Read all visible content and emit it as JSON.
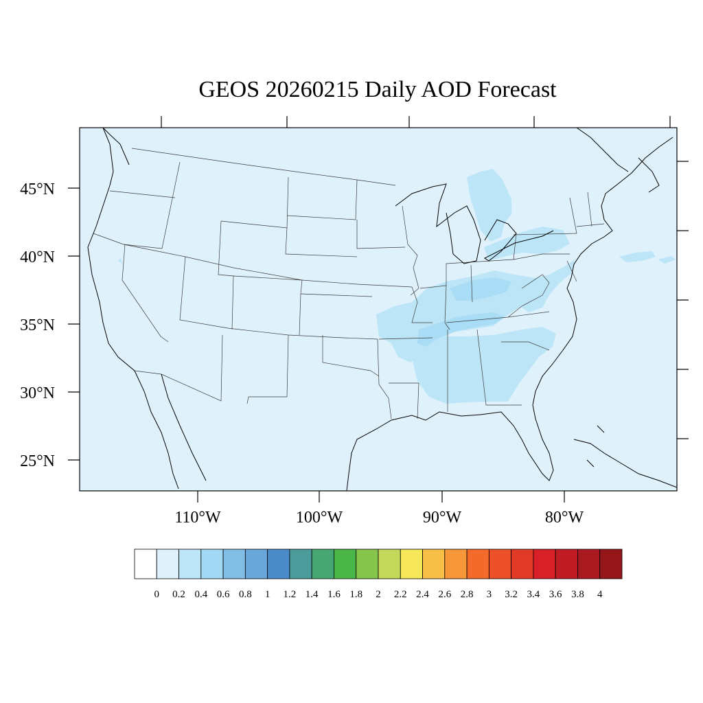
{
  "map": {
    "title": "GEOS 20260215 Daily AOD Forecast",
    "background_color": "#dff2fb",
    "lat_ticks": [
      {
        "label": "45°N",
        "lat": 45
      },
      {
        "label": "40°N",
        "lat": 40
      },
      {
        "label": "35°N",
        "lat": 35
      },
      {
        "label": "30°N",
        "lat": 30
      },
      {
        "label": "25°N",
        "lat": 25
      }
    ],
    "lon_ticks": [
      {
        "label": "110°W",
        "lon": -110
      },
      {
        "label": "100°W",
        "lon": -100
      },
      {
        "label": "90°W",
        "lon": -90
      },
      {
        "label": "80°W",
        "lon": -80
      }
    ],
    "plumes": [
      {
        "name": "ohio-valley-mississippi-plume",
        "level": "0.2-0.4"
      },
      {
        "name": "southeast-plume",
        "level": "0.2-0.4"
      },
      {
        "name": "great-lakes-plume",
        "level": "0.2-0.4"
      },
      {
        "name": "atlantic-offshore-plume",
        "level": "0.2-0.4"
      }
    ]
  },
  "colorbar": {
    "labels": [
      "0",
      "0.2",
      "0.4",
      "0.6",
      "0.8",
      "1",
      "1.2",
      "1.4",
      "1.6",
      "1.8",
      "2",
      "2.2",
      "2.4",
      "2.6",
      "2.8",
      "3",
      "3.2",
      "3.4",
      "3.6",
      "3.8",
      "4"
    ],
    "colors": [
      "#ffffff",
      "#dff2fb",
      "#bde5f8",
      "#a1d8f4",
      "#82bde6",
      "#68a7da",
      "#4a8bca",
      "#4a9b9a",
      "#47a772",
      "#4bb648",
      "#86c54c",
      "#c3d759",
      "#f6e75a",
      "#f8bf46",
      "#f69739",
      "#f36a2b",
      "#eb5028",
      "#e13a26",
      "#d72028",
      "#bf1c24",
      "#a91a20",
      "#941619"
    ]
  }
}
